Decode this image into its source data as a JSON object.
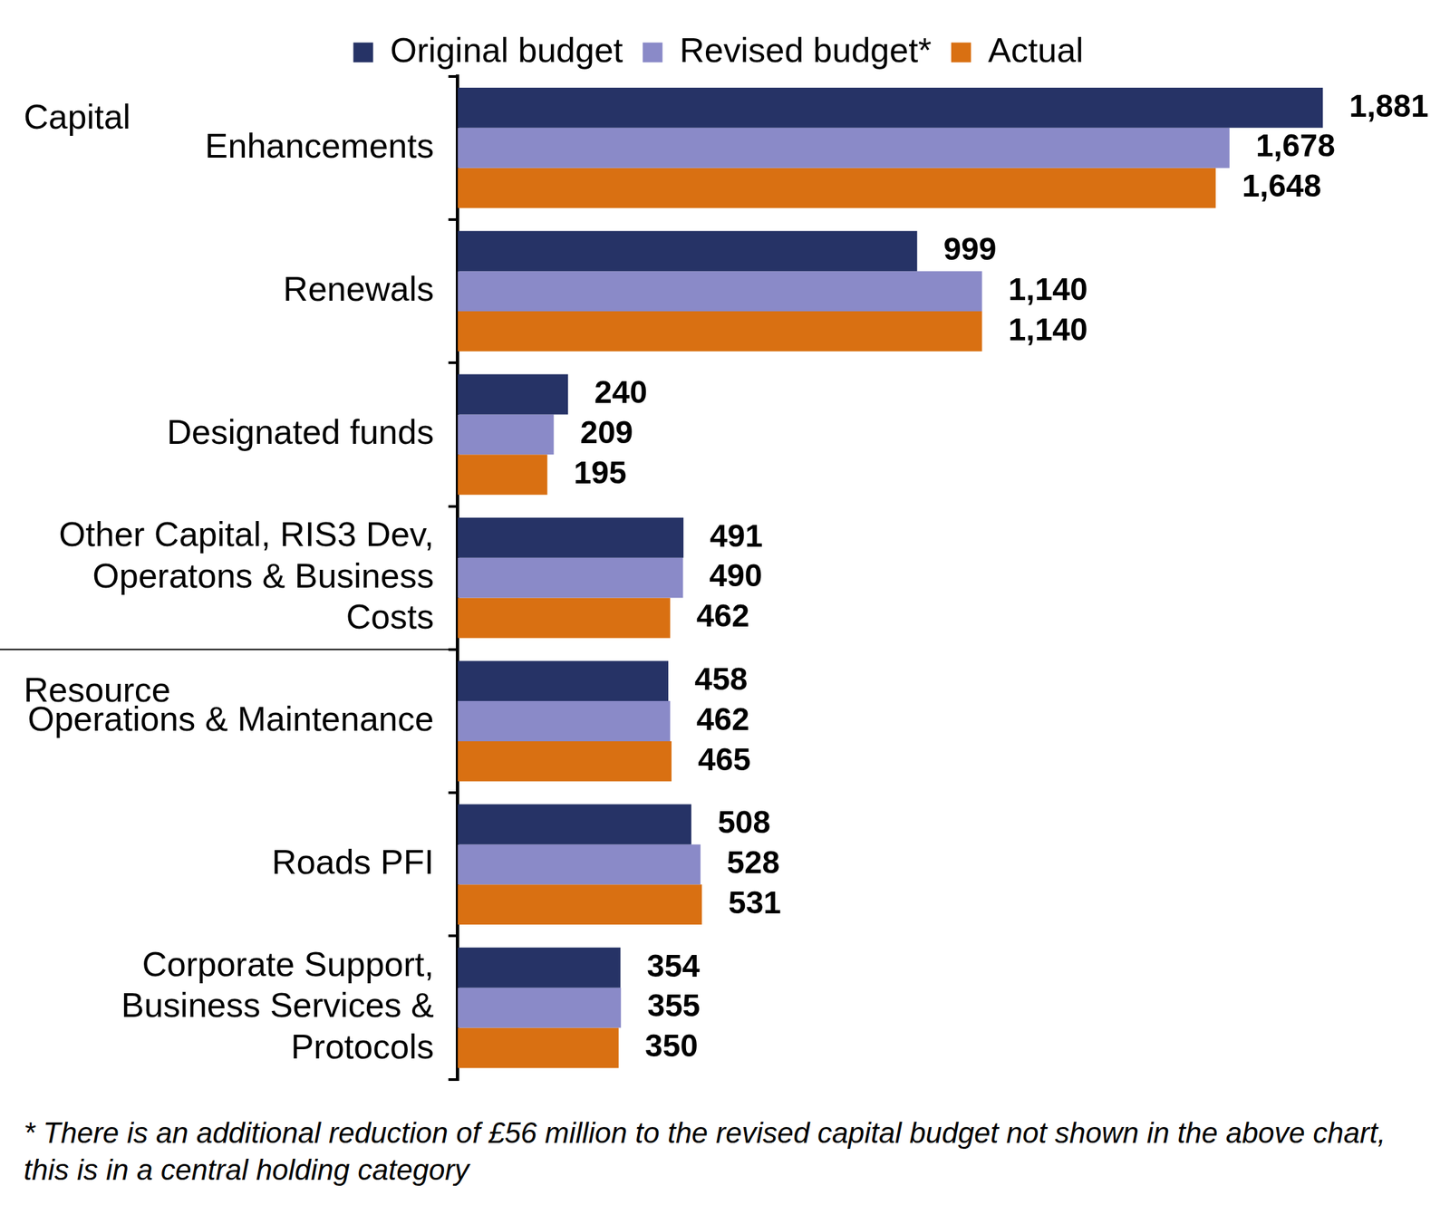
{
  "chart_data": {
    "type": "bar",
    "orientation": "horizontal",
    "categories": [
      "Enhancements",
      "Renewals",
      "Designated funds",
      "Other Capital, RIS3 Dev, Operatons & Business Costs",
      "Operations & Maintenance",
      "Roads PFI",
      "Corporate Support, Business Services & Protocols"
    ],
    "series": [
      {
        "name": "Original budget",
        "color": "#263366",
        "values": [
          1881,
          999,
          240,
          491,
          458,
          508,
          354
        ],
        "value_labels": [
          "1,881",
          "999",
          "240",
          "491",
          "458",
          "508",
          "354"
        ]
      },
      {
        "name": "Revised budget*",
        "color": "#8a8ac8",
        "values": [
          1678,
          1140,
          209,
          490,
          462,
          528,
          355
        ],
        "value_labels": [
          "1,678",
          "1,140",
          "209",
          "490",
          "462",
          "528",
          "355"
        ]
      },
      {
        "name": "Actual",
        "color": "#d97012",
        "values": [
          1648,
          1140,
          195,
          462,
          465,
          531,
          350
        ],
        "value_labels": [
          "1,648",
          "1,140",
          "195",
          "462",
          "465",
          "531",
          "350"
        ]
      }
    ],
    "groups": [
      {
        "label": "Capital",
        "categories": [
          "Enhancements",
          "Renewals",
          "Designated funds",
          "Other Capital, RIS3 Dev, Operatons & Business Costs"
        ]
      },
      {
        "label": "Resource",
        "categories": [
          "Operations & Maintenance",
          "Roads PFI",
          "Corporate Support, Business Services & Protocols"
        ]
      }
    ],
    "footnote": "* There is an additional reduction of £56 million to the revised capital budget not shown in the above chart, this is in a central holding category",
    "xlim": [
      0,
      2100
    ],
    "grid": false,
    "legend": "top",
    "data_labels": true,
    "tick_labels": "y"
  }
}
